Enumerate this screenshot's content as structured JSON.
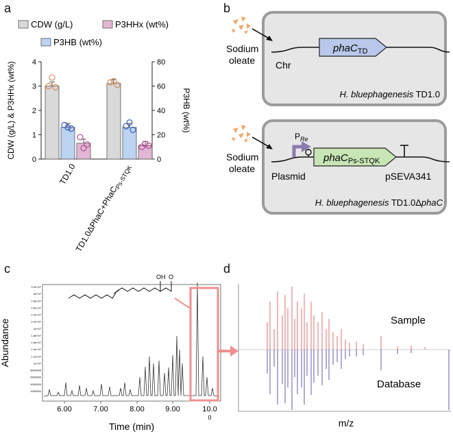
{
  "panels": {
    "a": "a",
    "b": "b",
    "c": "c",
    "d": "d"
  },
  "panel_a": {
    "legend": {
      "cdw": "CDW (g/L)",
      "p3hhx": "P3HHx (wt%)",
      "p3hb": "P3HB (wt%)"
    },
    "y_left_label": "CDW (g/L) & P3HHx (wt%)",
    "y_right_label": "P3HB (wt%)",
    "left_ticks": [
      "0",
      "1",
      "2",
      "3",
      "4"
    ],
    "right_ticks": [
      "0",
      "20",
      "40",
      "60",
      "80"
    ],
    "x_label_1": "TD1.0",
    "x_label_2_main": "TD1.0ΔPhaC+PhaC",
    "x_label_2_sub": "Ps-STQK",
    "colors": {
      "cdw": "#d9d9d9",
      "p3hb": "#bcd3f2",
      "p3hhx": "#e2b7d6",
      "cdw_dot": "#d28c5a",
      "p3hb_dot": "#3b5bb5",
      "p3hhx_dot": "#b04a8f"
    }
  },
  "chart_data": {
    "type": "bar",
    "categories": [
      "TD1.0",
      "TD1.0ΔPhaC+PhaC Ps-STQK"
    ],
    "series": [
      {
        "name": "CDW (g/L)",
        "axis": "left",
        "values": [
          3.0,
          3.1
        ]
      },
      {
        "name": "P3HB (wt%)",
        "axis": "right",
        "values": [
          26,
          26
        ]
      },
      {
        "name": "P3HHx (wt%)",
        "axis": "left",
        "values": [
          0.65,
          0.55
        ]
      }
    ],
    "replicates": [
      {
        "series": "CDW (g/L)",
        "points": [
          [
            3.0,
            3.35,
            2.95
          ],
          [
            3.15,
            3.2,
            3.05
          ]
        ]
      },
      {
        "series": "P3HB (wt%)",
        "points": [
          [
            28,
            26,
            25
          ],
          [
            27,
            30,
            24
          ]
        ]
      },
      {
        "series": "P3HHx (wt%)",
        "points": [
          [
            0.9,
            0.45,
            0.6
          ],
          [
            0.5,
            0.62,
            0.55
          ]
        ]
      }
    ],
    "ylim_left": [
      0,
      4
    ],
    "ylim_right": [
      0,
      80
    ],
    "ylabel_left": "CDW (g/L) & P3HHx (wt%)",
    "ylabel_right": "P3HB (wt%)"
  },
  "panel_b": {
    "top": {
      "inducer": "Sodium",
      "inducer2": "oleate",
      "locus": "Chr",
      "gene_main": "phaC",
      "gene_sub": "TD",
      "strain_italic": "H. bluephagenesis",
      "strain_rest": " TD1.0"
    },
    "bottom": {
      "inducer": "Sodium",
      "inducer2": "oleate",
      "promoter_main": "P",
      "promoter_sub": "Re",
      "locus": "Plasmid",
      "gene_main": "phaC",
      "gene_sub": "Ps-STQK",
      "vector": "pSEVA341",
      "strain_italic": "H. bluephagenesis",
      "strain_rest": " TD1.0Δ",
      "strain_italic2": "phaC"
    }
  },
  "panel_c": {
    "y_label": "Abundance",
    "x_label": "Time (min)",
    "x_ticks": [
      "6.00",
      "7.00",
      "8.00",
      "9.00",
      "10.0"
    ],
    "x_tick_extra": "0",
    "y_ticks": [
      "2000000",
      "4000000",
      "6000000",
      "8000000",
      "1e+07",
      "1.2e+07",
      "1.4e+07",
      "1.6e+07",
      "1.8e+07",
      "2e+07",
      "2.2e+07",
      "2.4e+07",
      "2.6e+07",
      "2.8e+07",
      "3e+07",
      "3.2e+07"
    ],
    "molecule_oh": "OH",
    "molecule_o": "O"
  },
  "panel_d": {
    "sample_label": "Sample",
    "database_label": "Database",
    "x_label": "m/z",
    "sample_color": "#e86b6b",
    "database_color": "#5a5ab5"
  }
}
